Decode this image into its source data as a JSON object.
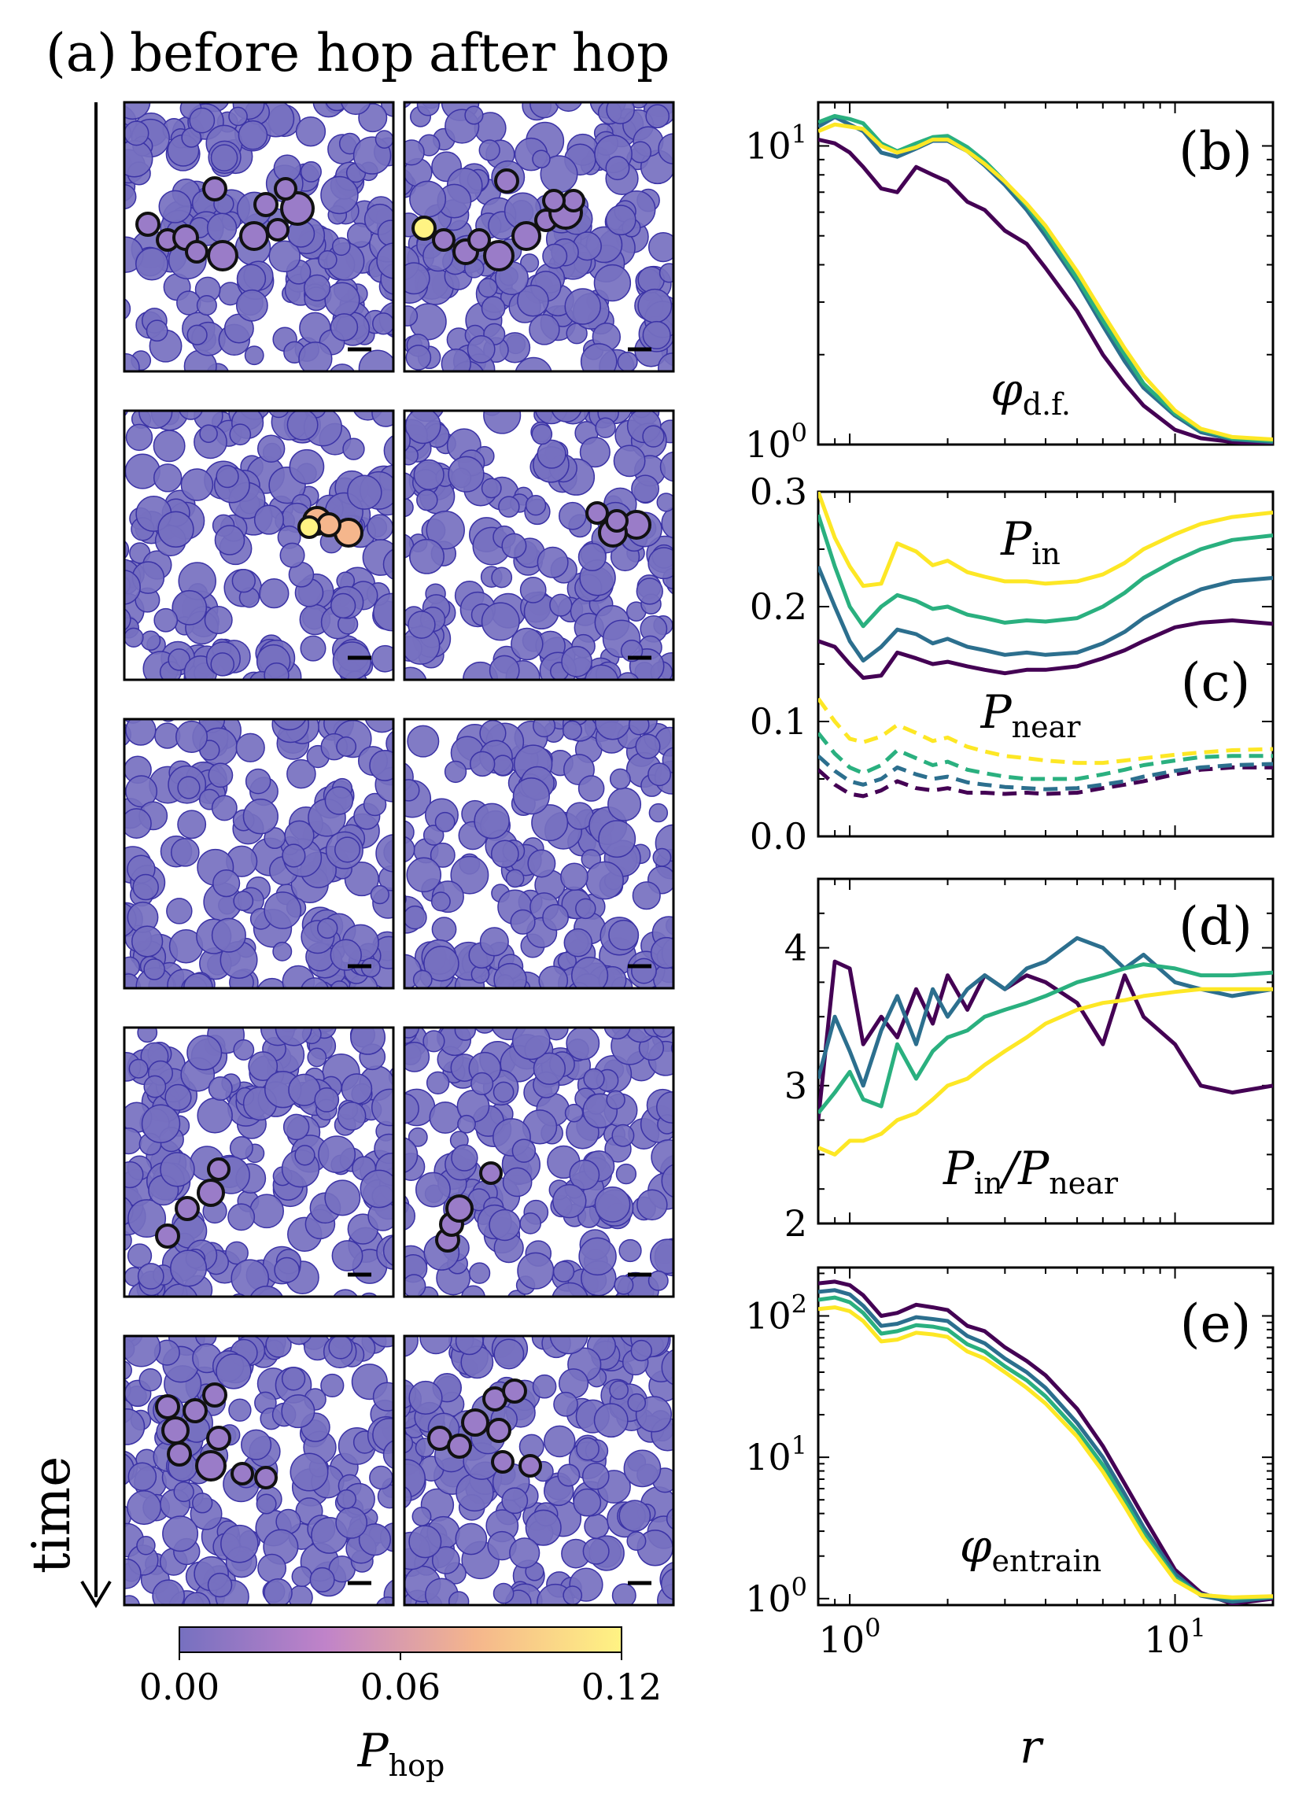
{
  "panel_a": {
    "label": "(a)",
    "col_before": "before hop",
    "col_after": "after hop",
    "time_label": "time",
    "colorbar": {
      "ticks": [
        "0.00",
        "0.06",
        "0.12"
      ],
      "symbol": "P",
      "symbol_sub": "hop",
      "colors": [
        "#7670c0",
        "#c083c9",
        "#f5b68c",
        "#fff383"
      ],
      "range": [
        0.0,
        0.12
      ]
    }
  },
  "axis": {
    "xlabel": "r",
    "xtick_base": "10",
    "xtick_exp": [
      "0",
      "1"
    ]
  },
  "colors": {
    "c1": "#440154",
    "c2": "#2c6f8e",
    "c3": "#2ab07f",
    "c4": "#fde725"
  },
  "chart_data": [
    {
      "id": "b",
      "type": "line",
      "label": "(b)",
      "symbol": "φ",
      "symbol_sub": "d.f.",
      "xscale": "log",
      "yscale": "log",
      "xlim": [
        0.8,
        20
      ],
      "ylim": [
        1,
        14
      ],
      "yticks": [
        {
          "base": "10",
          "exp": "0"
        },
        {
          "base": "10",
          "exp": "1"
        }
      ],
      "x": [
        0.8,
        0.9,
        1.0,
        1.1,
        1.25,
        1.4,
        1.6,
        1.8,
        2.0,
        2.3,
        2.6,
        3.0,
        3.5,
        4.0,
        5.0,
        6.0,
        7.0,
        8.0,
        10.0,
        12.0,
        15.0,
        20.0
      ],
      "series": [
        {
          "color": "#440154",
          "values": [
            10.5,
            10.2,
            9.5,
            8.5,
            7.2,
            7.0,
            8.5,
            8.0,
            7.6,
            6.5,
            6.1,
            5.2,
            4.7,
            3.9,
            2.8,
            2.0,
            1.6,
            1.35,
            1.12,
            1.05,
            1.02,
            1.0
          ]
        },
        {
          "color": "#2c6f8e",
          "values": [
            11.6,
            12.5,
            11.8,
            11.2,
            9.5,
            9.2,
            9.8,
            10.4,
            10.4,
            9.6,
            8.6,
            7.4,
            6.1,
            5.0,
            3.5,
            2.5,
            1.9,
            1.55,
            1.25,
            1.1,
            1.04,
            1.02
          ]
        },
        {
          "color": "#2ab07f",
          "values": [
            12.0,
            12.6,
            12.3,
            11.9,
            10.2,
            9.6,
            10.2,
            10.7,
            10.8,
            9.9,
            8.9,
            7.6,
            6.3,
            5.2,
            3.6,
            2.6,
            2.0,
            1.6,
            1.27,
            1.12,
            1.05,
            1.03
          ]
        },
        {
          "color": "#fde725",
          "values": [
            11.2,
            11.8,
            11.6,
            11.4,
            10.0,
            9.5,
            9.9,
            10.5,
            10.5,
            9.6,
            8.7,
            7.6,
            6.4,
            5.4,
            3.8,
            2.75,
            2.1,
            1.7,
            1.3,
            1.13,
            1.06,
            1.04
          ]
        }
      ]
    },
    {
      "id": "c",
      "type": "line",
      "label": "(c)",
      "xscale": "log",
      "yscale": "linear",
      "xlim": [
        0.8,
        20
      ],
      "ylim": [
        0,
        0.3
      ],
      "yticks": [
        "0.0",
        "0.1",
        "0.2",
        "0.3"
      ],
      "annotations": [
        {
          "symbol": "P",
          "sub": "in"
        },
        {
          "symbol": "P",
          "sub": "near"
        }
      ],
      "x": [
        0.8,
        0.9,
        1.0,
        1.1,
        1.25,
        1.4,
        1.6,
        1.8,
        2.0,
        2.3,
        2.6,
        3.0,
        3.5,
        4.0,
        5.0,
        6.0,
        7.0,
        8.0,
        10.0,
        12.0,
        15.0,
        20.0
      ],
      "series": [
        {
          "name": "P_in",
          "color": "#440154",
          "dashed": false,
          "values": [
            0.17,
            0.165,
            0.15,
            0.138,
            0.14,
            0.16,
            0.155,
            0.15,
            0.152,
            0.148,
            0.145,
            0.142,
            0.145,
            0.145,
            0.148,
            0.155,
            0.162,
            0.17,
            0.182,
            0.186,
            0.188,
            0.185
          ]
        },
        {
          "name": "P_in",
          "color": "#2c6f8e",
          "dashed": false,
          "values": [
            0.235,
            0.2,
            0.17,
            0.153,
            0.165,
            0.18,
            0.176,
            0.168,
            0.172,
            0.165,
            0.162,
            0.158,
            0.16,
            0.158,
            0.16,
            0.168,
            0.178,
            0.19,
            0.205,
            0.215,
            0.222,
            0.225
          ]
        },
        {
          "name": "P_in",
          "color": "#2ab07f",
          "dashed": false,
          "values": [
            0.28,
            0.235,
            0.2,
            0.183,
            0.2,
            0.21,
            0.205,
            0.198,
            0.2,
            0.193,
            0.19,
            0.186,
            0.188,
            0.187,
            0.19,
            0.2,
            0.212,
            0.225,
            0.24,
            0.25,
            0.258,
            0.262
          ]
        },
        {
          "name": "P_in",
          "color": "#fde725",
          "dashed": false,
          "values": [
            0.3,
            0.26,
            0.235,
            0.218,
            0.22,
            0.255,
            0.248,
            0.236,
            0.24,
            0.23,
            0.226,
            0.222,
            0.222,
            0.22,
            0.222,
            0.228,
            0.238,
            0.25,
            0.263,
            0.272,
            0.278,
            0.282
          ]
        },
        {
          "name": "P_near",
          "color": "#440154",
          "dashed": true,
          "values": [
            0.058,
            0.045,
            0.037,
            0.035,
            0.04,
            0.048,
            0.042,
            0.04,
            0.042,
            0.038,
            0.038,
            0.037,
            0.038,
            0.037,
            0.038,
            0.042,
            0.045,
            0.048,
            0.054,
            0.058,
            0.06,
            0.06
          ]
        },
        {
          "name": "P_near",
          "color": "#2c6f8e",
          "dashed": true,
          "values": [
            0.07,
            0.057,
            0.048,
            0.045,
            0.05,
            0.06,
            0.054,
            0.05,
            0.052,
            0.047,
            0.045,
            0.043,
            0.042,
            0.041,
            0.042,
            0.045,
            0.048,
            0.052,
            0.057,
            0.06,
            0.062,
            0.063
          ]
        },
        {
          "name": "P_near",
          "color": "#2ab07f",
          "dashed": true,
          "values": [
            0.09,
            0.072,
            0.06,
            0.055,
            0.062,
            0.075,
            0.068,
            0.062,
            0.065,
            0.058,
            0.055,
            0.052,
            0.05,
            0.05,
            0.05,
            0.054,
            0.058,
            0.062,
            0.066,
            0.069,
            0.07,
            0.07
          ]
        },
        {
          "name": "P_near",
          "color": "#fde725",
          "dashed": true,
          "values": [
            0.12,
            0.1,
            0.085,
            0.082,
            0.087,
            0.097,
            0.09,
            0.083,
            0.086,
            0.078,
            0.074,
            0.07,
            0.068,
            0.066,
            0.064,
            0.064,
            0.066,
            0.068,
            0.071,
            0.073,
            0.075,
            0.076
          ]
        }
      ]
    },
    {
      "id": "d",
      "type": "line",
      "label": "(d)",
      "xscale": "log",
      "yscale": "linear",
      "xlim": [
        0.8,
        20
      ],
      "ylim": [
        2,
        4.5
      ],
      "yticks": [
        "2",
        "3",
        "4"
      ],
      "annotation": {
        "symbol": "P",
        "sub": "in",
        "sep": "/",
        "symbol2": "P",
        "sub2": "near"
      },
      "x": [
        0.8,
        0.9,
        1.0,
        1.1,
        1.25,
        1.4,
        1.6,
        1.8,
        2.0,
        2.3,
        2.6,
        3.0,
        3.5,
        4.0,
        5.0,
        6.0,
        7.0,
        8.0,
        10.0,
        12.0,
        15.0,
        20.0
      ],
      "series": [
        {
          "color": "#440154",
          "values": [
            2.75,
            3.9,
            3.85,
            3.3,
            3.5,
            3.35,
            3.7,
            3.45,
            3.8,
            3.55,
            3.8,
            3.7,
            3.8,
            3.75,
            3.6,
            3.3,
            3.8,
            3.5,
            3.3,
            3.0,
            2.95,
            3.0
          ]
        },
        {
          "color": "#2c6f8e",
          "values": [
            3.05,
            3.5,
            3.25,
            3.0,
            3.4,
            3.65,
            3.3,
            3.7,
            3.5,
            3.7,
            3.8,
            3.7,
            3.85,
            3.9,
            4.07,
            4.0,
            3.85,
            3.95,
            3.75,
            3.7,
            3.65,
            3.7
          ]
        },
        {
          "color": "#2ab07f",
          "values": [
            2.8,
            2.95,
            3.1,
            2.9,
            2.85,
            3.3,
            3.05,
            3.25,
            3.35,
            3.4,
            3.5,
            3.55,
            3.6,
            3.65,
            3.75,
            3.8,
            3.85,
            3.88,
            3.85,
            3.8,
            3.8,
            3.82
          ]
        },
        {
          "color": "#fde725",
          "values": [
            2.55,
            2.5,
            2.6,
            2.6,
            2.65,
            2.75,
            2.8,
            2.9,
            3.0,
            3.05,
            3.15,
            3.25,
            3.35,
            3.45,
            3.55,
            3.6,
            3.62,
            3.65,
            3.68,
            3.7,
            3.7,
            3.7
          ]
        }
      ]
    },
    {
      "id": "e",
      "type": "line",
      "label": "(e)",
      "symbol": "φ",
      "symbol_sub": "entrain",
      "xscale": "log",
      "yscale": "log",
      "xlim": [
        0.8,
        20
      ],
      "ylim": [
        0.9,
        220
      ],
      "yticks": [
        {
          "base": "10",
          "exp": "0"
        },
        {
          "base": "10",
          "exp": "1"
        },
        {
          "base": "10",
          "exp": "2"
        }
      ],
      "x": [
        0.8,
        0.9,
        1.0,
        1.1,
        1.25,
        1.4,
        1.6,
        1.8,
        2.0,
        2.3,
        2.6,
        3.0,
        3.5,
        4.0,
        5.0,
        6.0,
        7.0,
        8.0,
        10.0,
        12.0,
        15.0,
        20.0
      ],
      "series": [
        {
          "color": "#440154",
          "values": [
            170,
            175,
            165,
            140,
            100,
            105,
            120,
            115,
            110,
            85,
            78,
            60,
            48,
            38,
            22,
            12,
            6.5,
            3.8,
            1.6,
            1.1,
            0.92,
            1.0
          ]
        },
        {
          "color": "#2c6f8e",
          "values": [
            148,
            152,
            142,
            118,
            85,
            88,
            98,
            95,
            92,
            72,
            64,
            50,
            40,
            31,
            17.5,
            10,
            5.5,
            3.2,
            1.5,
            1.05,
            0.95,
            1.02
          ]
        },
        {
          "color": "#2ab07f",
          "values": [
            130,
            135,
            125,
            105,
            75,
            78,
            86,
            84,
            80,
            63,
            56,
            44,
            35,
            27,
            15.5,
            8.8,
            4.9,
            2.9,
            1.4,
            1.07,
            1.0,
            1.03
          ]
        },
        {
          "color": "#fde725",
          "values": [
            112,
            115,
            108,
            92,
            66,
            68,
            76,
            74,
            71,
            56,
            50,
            40,
            31,
            24,
            14,
            7.9,
            4.5,
            2.7,
            1.35,
            1.06,
            1.02,
            1.04
          ]
        }
      ]
    }
  ]
}
